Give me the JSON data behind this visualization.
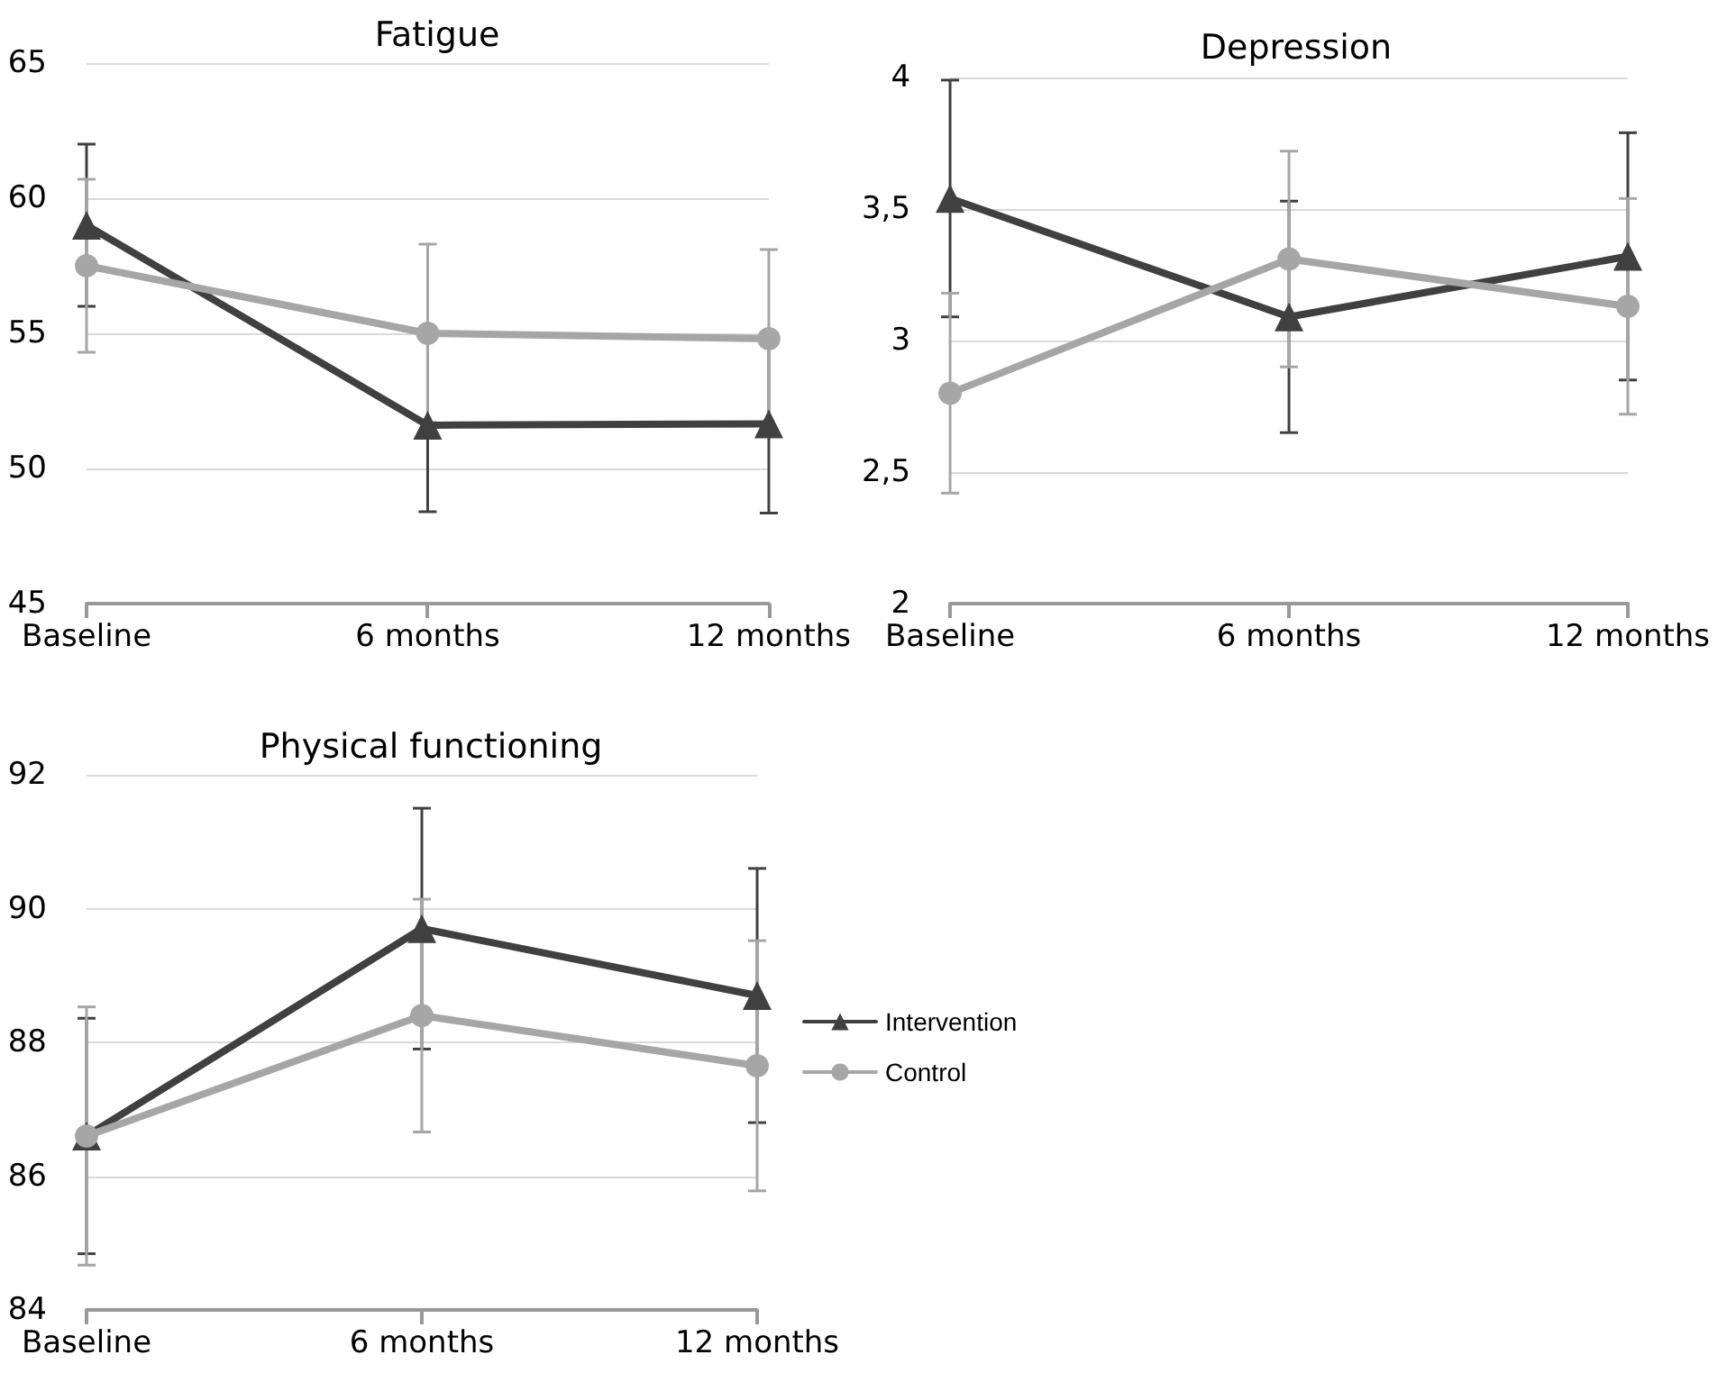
{
  "chart_data": [
    {
      "type": "line",
      "title": "Fatigue",
      "categories": [
        "Baseline",
        "6 months",
        "12 months"
      ],
      "ylim": [
        45,
        65
      ],
      "yticks": [
        45,
        50,
        55,
        60,
        65
      ],
      "grid": "y",
      "legend": false,
      "series": [
        {
          "color": "#404040",
          "marker": "triangle",
          "values": [
            59,
            51.6,
            51.65
          ],
          "errors": [
            3,
            3.2,
            3.3
          ]
        },
        {
          "color": "#a6a6a6",
          "marker": "circle",
          "values": [
            57.5,
            55.0,
            54.8
          ],
          "errors": [
            3.2,
            3.3,
            3.3
          ]
        }
      ]
    },
    {
      "type": "line",
      "title": "Depression",
      "categories": [
        "Baseline",
        "6 months",
        "12 months"
      ],
      "ylim": [
        2,
        4
      ],
      "yticks": [
        2,
        {
          "value": 2.5,
          "label": "2,5"
        },
        3,
        {
          "value": 3.5,
          "label": "3,5"
        },
        4
      ],
      "grid": "y",
      "legend": false,
      "series": [
        {
          "color": "#404040",
          "marker": "triangle",
          "values": [
            3.54,
            3.09,
            3.32
          ],
          "errors": [
            0.45,
            0.44,
            0.47
          ]
        },
        {
          "color": "#a6a6a6",
          "marker": "circle",
          "values": [
            2.8,
            3.31,
            3.13
          ],
          "errors": [
            0.38,
            0.41,
            0.41
          ]
        }
      ]
    },
    {
      "type": "line",
      "title": "Physical functioning",
      "categories": [
        "Baseline",
        "6 months",
        "12 months"
      ],
      "ylim": [
        84,
        92
      ],
      "yticks": [
        84,
        86,
        88,
        90,
        92
      ],
      "grid": "y",
      "legend": "right",
      "series": [
        {
          "name": "Intervention",
          "color": "#404040",
          "marker": "triangle",
          "values": [
            86.6,
            89.7,
            88.7
          ],
          "errors": [
            1.76,
            1.8,
            1.9
          ]
        },
        {
          "name": "Control",
          "color": "#a6a6a6",
          "marker": "circle",
          "values": [
            86.6,
            88.4,
            87.65
          ],
          "errors": [
            1.93,
            1.74,
            1.87
          ]
        }
      ]
    }
  ]
}
